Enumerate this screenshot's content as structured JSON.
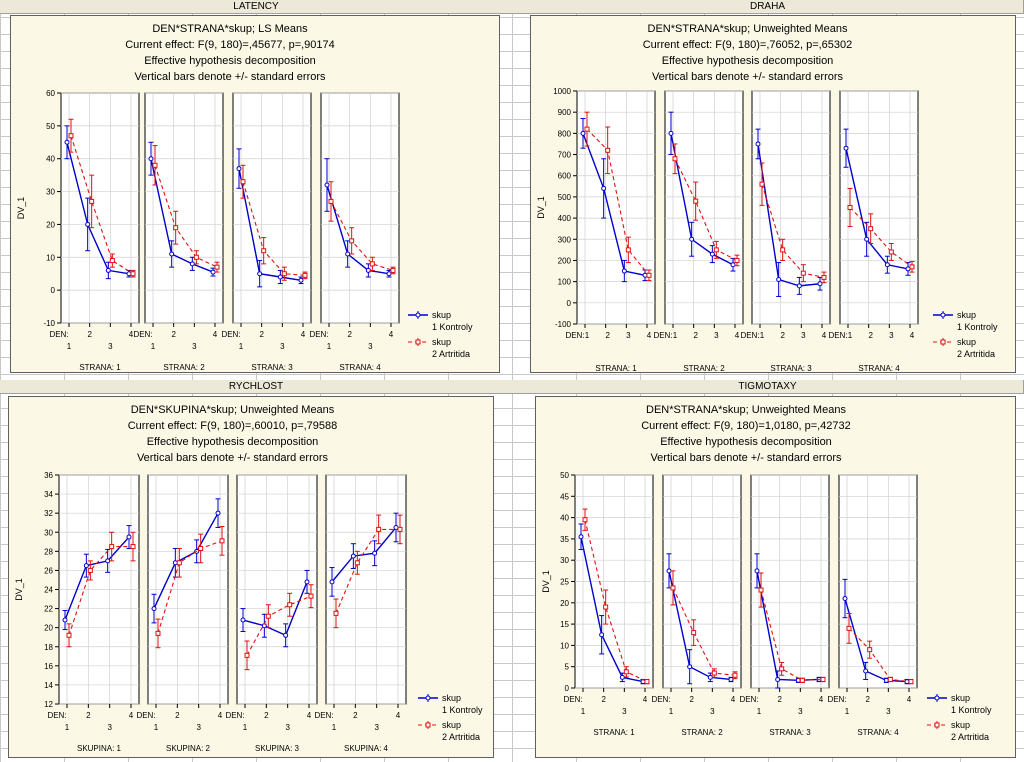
{
  "sheet_headers": {
    "latency": "LATENCY",
    "draha": "DRAHA",
    "rychlost": "RYCHLOST",
    "tigmotaxy": "TIGMOTAXY"
  },
  "colors": {
    "series1": "#0000cc",
    "series2": "#e01010",
    "panel_bg": "#fcf8e6",
    "chart_bg": "#ffffff"
  },
  "chart_data": [
    {
      "id": "latency",
      "type": "line",
      "title": [
        "DEN*STRANA*skup; LS Means",
        "Current effect: F(9, 180)=,45677, p=,90174",
        "Effective hypothesis decomposition",
        "Vertical bars denote +/- standard errors"
      ],
      "ylabel": "DV_1",
      "ylim": [
        -10,
        60
      ],
      "yticks": [
        -10,
        0,
        10,
        20,
        30,
        40,
        50,
        60
      ],
      "panel_label": "STRANA",
      "panel_values": [
        "1",
        "2",
        "3",
        "4"
      ],
      "xlabel": "DEN:",
      "xticks_top": [
        "2",
        "4"
      ],
      "xticks_bottom": [
        "1",
        "3"
      ],
      "legend": {
        "title": "skup",
        "items": [
          "1 Kontroly",
          "2 Artritida"
        ]
      },
      "series": [
        {
          "name": "1 Kontroly",
          "panels": [
            [
              45,
              20,
              6,
              5
            ],
            [
              40,
              11,
              8,
              5.5
            ],
            [
              37,
              5,
              4,
              3
            ],
            [
              32,
              11,
              6,
              5
            ]
          ],
          "se": [
            [
              5,
              8,
              2.5,
              1
            ],
            [
              5,
              4,
              2,
              1.2
            ],
            [
              6,
              4,
              2,
              1
            ],
            [
              8,
              4,
              2,
              1
            ]
          ]
        },
        {
          "name": "2 Artritida",
          "panels": [
            [
              47,
              27,
              9,
              5
            ],
            [
              38,
              19,
              10,
              7
            ],
            [
              33,
              12,
              5,
              4.5
            ],
            [
              27,
              15,
              8,
              6
            ]
          ],
          "se": [
            [
              5,
              8,
              2,
              1
            ],
            [
              6,
              5,
              2,
              1.5
            ],
            [
              5,
              4,
              2,
              1
            ],
            [
              6,
              4,
              2,
              1
            ]
          ]
        }
      ]
    },
    {
      "id": "draha",
      "type": "line",
      "title": [
        "DEN*STRANA*skup; Unweighted Means",
        "Current effect: F(9, 180)=,76052, p=,65302",
        "Effective hypothesis decomposition",
        "Vertical bars denote +/- standard errors"
      ],
      "ylabel": "DV_1",
      "ylim": [
        -100,
        1000
      ],
      "yticks": [
        -100,
        0,
        100,
        200,
        300,
        400,
        500,
        600,
        700,
        800,
        900,
        1000
      ],
      "panel_label": "STRANA",
      "panel_values": [
        "1",
        "2",
        "3",
        "4"
      ],
      "xlabel": "DEN:",
      "xticks_top": [
        "1",
        "2",
        "3",
        "4"
      ],
      "xticks_bottom": [],
      "legend": {
        "title": "skup",
        "items": [
          "1 Kontroly",
          "2 Artritida"
        ]
      },
      "series": [
        {
          "name": "1 Kontroly",
          "panels": [
            [
              800,
              540,
              150,
              130
            ],
            [
              800,
              300,
              230,
              180
            ],
            [
              750,
              110,
              80,
              90
            ],
            [
              730,
              300,
              180,
              160
            ]
          ],
          "se": [
            [
              70,
              140,
              50,
              25
            ],
            [
              100,
              80,
              40,
              30
            ],
            [
              70,
              80,
              40,
              30
            ],
            [
              90,
              80,
              40,
              30
            ]
          ]
        },
        {
          "name": "2 Artritida",
          "panels": [
            [
              820,
              720,
              250,
              130
            ],
            [
              680,
              480,
              250,
              200
            ],
            [
              560,
              250,
              140,
              120
            ],
            [
              450,
              350,
              240,
              170
            ]
          ],
          "se": [
            [
              80,
              110,
              60,
              25
            ],
            [
              70,
              90,
              40,
              25
            ],
            [
              100,
              50,
              40,
              25
            ],
            [
              90,
              70,
              40,
              25
            ]
          ]
        }
      ]
    },
    {
      "id": "rychlost",
      "type": "line",
      "title": [
        "DEN*SKUPINA*skup; Unweighted Means",
        "Current effect: F(9, 180)=,60010, p=,79588",
        "Effective hypothesis decomposition",
        "Vertical bars denote +/- standard errors"
      ],
      "ylabel": "DV_1",
      "ylim": [
        12,
        36
      ],
      "yticks": [
        12,
        14,
        16,
        18,
        20,
        22,
        24,
        26,
        28,
        30,
        32,
        34,
        36
      ],
      "panel_label": "SKUPINA",
      "panel_values": [
        "1",
        "2",
        "3",
        "4"
      ],
      "xlabel": "DEN:",
      "xticks_top": [
        "2",
        "4"
      ],
      "xticks_bottom": [
        "1",
        "3"
      ],
      "legend": {
        "title": "skup",
        "items": [
          "1 Kontroly",
          "2 Artritida"
        ]
      },
      "series": [
        {
          "name": "1 Kontroly",
          "panels": [
            [
              20.8,
              26.5,
              27,
              29.5
            ],
            [
              22,
              26.8,
              28,
              32
            ],
            [
              20.8,
              20.2,
              19.2,
              24.8
            ],
            [
              24.8,
              27.5,
              27.8,
              30.5
            ]
          ],
          "se": [
            [
              1,
              1.2,
              1.2,
              1.2
            ],
            [
              1.5,
              1.5,
              1.2,
              1.5
            ],
            [
              1.2,
              1.2,
              1.2,
              1.2
            ],
            [
              1.5,
              1.3,
              1.3,
              1.5
            ]
          ]
        },
        {
          "name": "2 Artritida",
          "panels": [
            [
              19.2,
              26,
              28.5,
              28.5
            ],
            [
              19.4,
              26.8,
              28.3,
              29.1
            ],
            [
              17.1,
              21.2,
              22.4,
              23.3
            ],
            [
              21.5,
              26.8,
              30.3,
              30.3
            ]
          ],
          "se": [
            [
              1.2,
              1,
              1.5,
              1.5
            ],
            [
              1.5,
              1.5,
              1.5,
              1.5
            ],
            [
              1.5,
              1.2,
              1.2,
              1.2
            ],
            [
              1.5,
              1.2,
              1.5,
              1.5
            ]
          ]
        }
      ]
    },
    {
      "id": "tigmotaxy",
      "type": "line",
      "title": [
        "DEN*STRANA*skup; Unweighted Means",
        "Current effect: F(9, 180)=1,0180, p=,42732",
        "Effective hypothesis decomposition",
        "Vertical bars denote +/- standard errors"
      ],
      "ylabel": "DV_1",
      "ylim": [
        0,
        50
      ],
      "yticks": [
        0,
        5,
        10,
        15,
        20,
        25,
        30,
        35,
        40,
        45,
        50
      ],
      "panel_label": "STRANA",
      "panel_values": [
        "1",
        "2",
        "3",
        "4"
      ],
      "xlabel": "DEN:",
      "xticks_top": [
        "2",
        "4"
      ],
      "xticks_bottom": [
        "1",
        "3"
      ],
      "legend": {
        "title": "skup",
        "items": [
          "1 Kontroly",
          "2 Artritida"
        ]
      },
      "series": [
        {
          "name": "1 Kontroly",
          "panels": [
            [
              35.5,
              12.5,
              2.5,
              1.5
            ],
            [
              27.5,
              5,
              2.5,
              2
            ],
            [
              27.5,
              2,
              1.8,
              2
            ],
            [
              21,
              4,
              1.8,
              1.5
            ]
          ],
          "se": [
            [
              3,
              4.5,
              1,
              0.5
            ],
            [
              4,
              4,
              1,
              0.5
            ],
            [
              4,
              2,
              0.5,
              0.5
            ],
            [
              4.5,
              2,
              0.5,
              0.5
            ]
          ]
        },
        {
          "name": "2 Artritida",
          "panels": [
            [
              39.5,
              19,
              3.8,
              1.5
            ],
            [
              23.5,
              13,
              3.5,
              3
            ],
            [
              23,
              4.5,
              1.8,
              2
            ],
            [
              14,
              9,
              2,
              1.5
            ]
          ],
          "se": [
            [
              2.5,
              4,
              1.2,
              0.5
            ],
            [
              4,
              3,
              1,
              0.8
            ],
            [
              4,
              1.5,
              0.5,
              0.5
            ],
            [
              3.5,
              2,
              0.5,
              0.5
            ]
          ]
        }
      ]
    }
  ]
}
